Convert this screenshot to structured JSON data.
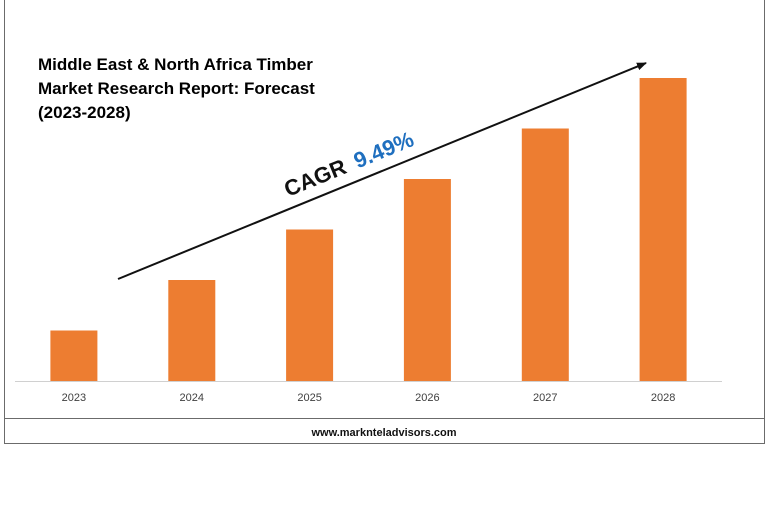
{
  "chart_data": {
    "type": "bar",
    "title_lines": [
      "Middle East & North Africa Timber",
      "Market Research Report: Forecast",
      "(2023-2028)"
    ],
    "categories": [
      "2023",
      "2024",
      "2025",
      "2026",
      "2027",
      "2028"
    ],
    "values": [
      1.0,
      2.0,
      3.0,
      4.0,
      5.0,
      6.0
    ],
    "ylim": [
      0,
      6.0
    ],
    "bar_color": "#ed7d31",
    "annotation": {
      "label": "CAGR",
      "value": "9.49%",
      "value_color": "#1f6fbf"
    },
    "grid": false,
    "legend": "none"
  },
  "footer": {
    "source": "www.marknteladvisors.com"
  }
}
